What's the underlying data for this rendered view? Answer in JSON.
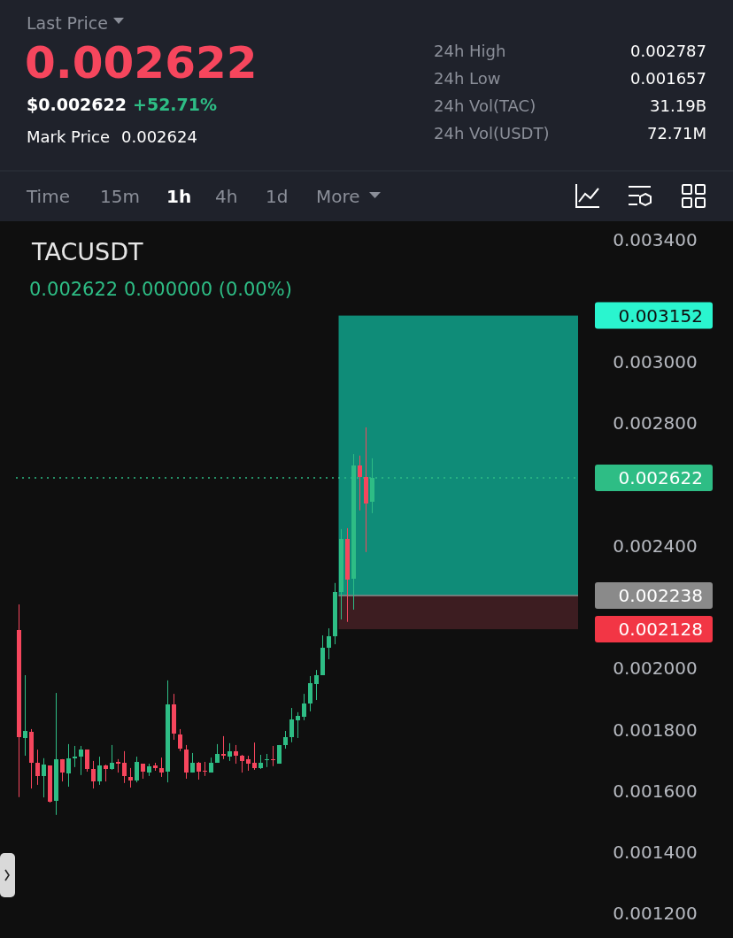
{
  "chart_data": {
    "type": "candlestick",
    "title": "TACUSDT",
    "subtitle": "0.002622  0.000000 (0.00%)",
    "annotations": [
      "Last Price",
      "0.002622",
      "$0.002622",
      "+52.71%",
      "Mark Price",
      "0.002624",
      "24h High",
      "0.002787",
      "24h Low",
      "0.001657",
      "24h Vol(TAC)",
      "31.19B",
      "24h Vol(USDT)",
      "72.71M",
      "Time",
      "15m",
      "1h",
      "4h",
      "1d",
      "More"
    ],
    "categories": [
      null,
      null,
      null,
      null,
      null,
      null,
      null,
      null,
      null,
      null,
      null,
      null,
      null,
      null,
      null,
      null,
      null,
      null,
      null,
      null,
      null,
      null,
      null,
      null,
      null,
      null,
      null,
      null,
      null,
      null,
      null,
      null,
      null,
      null,
      null,
      null,
      null,
      null,
      null,
      null,
      null,
      null,
      null,
      null,
      null,
      null,
      null,
      null,
      null,
      null,
      null,
      null,
      null,
      null,
      null,
      null,
      null,
      null,
      null,
      null,
      null,
      null,
      null,
      null,
      null,
      null,
      null,
      null,
      null,
      null,
      null,
      null,
      null,
      null,
      null,
      null,
      null,
      null,
      null,
      null,
      null,
      null,
      null,
      null,
      null,
      null,
      null,
      null,
      null,
      null,
      null
    ],
    "ohlc": [
      [
        0.002126,
        0.002209,
        0.00158,
        0.001776
      ],
      [
        0.001773,
        0.001978,
        0.001715,
        0.001796
      ],
      [
        0.001793,
        0.001802,
        0.001608,
        0.001692
      ],
      [
        0.001692,
        0.001735,
        0.00162,
        0.001649
      ],
      [
        0.001649,
        0.001707,
        0.001579,
        0.001686
      ],
      [
        0.001683,
        0.001683,
        0.001562,
        0.001565
      ],
      [
        0.001568,
        0.00192,
        0.001522,
        0.001704
      ],
      [
        0.001704,
        0.001704,
        0.001631,
        0.00166
      ],
      [
        0.001657,
        0.001753,
        0.001614,
        0.001707
      ],
      [
        0.001707,
        0.001747,
        0.001678,
        0.001712
      ],
      [
        0.001712,
        0.001747,
        0.001652,
        0.001735
      ],
      [
        0.001735,
        0.001735,
        0.001663,
        0.001672
      ],
      [
        0.001672,
        0.001698,
        0.001608,
        0.001631
      ],
      [
        0.001631,
        0.001712,
        0.00162,
        0.001683
      ],
      [
        0.001683,
        0.001686,
        0.001631,
        0.001672
      ],
      [
        0.001672,
        0.00175,
        0.001669,
        0.001692
      ],
      [
        0.001695,
        0.001704,
        0.00166,
        0.001689
      ],
      [
        0.001692,
        0.00173,
        0.001626,
        0.001649
      ],
      [
        0.001646,
        0.001675,
        0.001611,
        0.001634
      ],
      [
        0.001634,
        0.001712,
        0.001628,
        0.001695
      ],
      [
        0.001689,
        0.001689,
        0.00164,
        0.001663
      ],
      [
        0.00166,
        0.001689,
        0.001649,
        0.001681
      ],
      [
        0.001683,
        0.001692,
        0.001666,
        0.001675
      ],
      [
        0.001675,
        0.001709,
        0.001646,
        0.00166
      ],
      [
        0.001663,
        0.001961,
        0.001628,
        0.001883
      ],
      [
        0.001883,
        0.001917,
        0.001767,
        0.001788
      ],
      [
        0.001785,
        0.001802,
        0.00173,
        0.001738
      ],
      [
        0.001735,
        0.00175,
        0.00164,
        0.00166
      ],
      [
        0.00166,
        0.001724,
        0.00166,
        0.001692
      ],
      [
        0.001692,
        0.001695,
        0.001637,
        0.001663
      ],
      [
        0.001666,
        0.001695,
        0.001649,
        0.001663
      ],
      [
        0.00166,
        0.001709,
        0.00166,
        0.001692
      ],
      [
        0.001692,
        0.001753,
        0.001692,
        0.00172
      ],
      [
        0.00172,
        0.001779,
        0.001704,
        0.001715
      ],
      [
        0.001712,
        0.001756,
        0.001698,
        0.00173
      ],
      [
        0.00173,
        0.00175,
        0.001689,
        0.001715
      ],
      [
        0.001715,
        0.001718,
        0.00166,
        0.001698
      ],
      [
        0.001704,
        0.001715,
        0.001666,
        0.001689
      ],
      [
        0.001692,
        0.001758,
        0.001669,
        0.001675
      ],
      [
        0.001675,
        0.001718,
        0.001672,
        0.001692
      ],
      [
        0.001701,
        0.001721,
        0.001678,
        0.001704
      ],
      [
        0.001704,
        0.001747,
        0.001681,
        0.001701
      ],
      [
        0.001689,
        0.00175,
        0.001689,
        0.00175
      ],
      [
        0.00175,
        0.001796,
        0.001738,
        0.001776
      ],
      [
        0.001776,
        0.001871,
        0.001759,
        0.001834
      ],
      [
        0.001831,
        0.001857,
        0.001773,
        0.001845
      ],
      [
        0.001842,
        0.001917,
        0.001831,
        0.001886
      ],
      [
        0.001886,
        0.001975,
        0.00186,
        0.001952
      ],
      [
        0.001949,
        0.001995,
        0.001897,
        0.001978
      ],
      [
        0.001978,
        0.002108,
        0.001978,
        0.002068
      ],
      [
        0.002068,
        0.002131,
        0.00203,
        0.002105
      ],
      [
        0.002105,
        0.002279,
        0.002079,
        0.00225
      ],
      [
        0.00225,
        0.002455,
        0.00216,
        0.002423
      ],
      [
        0.002423,
        0.002458,
        0.002152,
        0.00229
      ],
      [
        0.002293,
        0.0027,
        0.002192,
        0.002663
      ],
      [
        0.002663,
        0.002695,
        0.002516,
        0.002625
      ],
      [
        0.002625,
        0.002787,
        0.00238,
        0.002539
      ],
      [
        0.002545,
        0.002686,
        0.002507,
        0.002622
      ],
      null,
      null,
      null,
      null,
      null,
      null,
      null,
      null,
      null,
      null,
      null,
      null,
      null,
      null,
      null,
      null,
      null,
      null,
      null,
      null,
      null,
      null,
      null,
      null,
      null,
      null,
      null,
      null,
      null,
      null,
      null,
      null,
      null
    ],
    "colors": [
      "#f6465d",
      "#2ebd85",
      "#f6465d",
      "#f6465d",
      "#2ebd85",
      "#f6465d",
      "#2ebd85",
      "#f6465d",
      "#2ebd85",
      "#2ebd85",
      "#2ebd85",
      "#f6465d",
      "#f6465d",
      "#2ebd85",
      "#f6465d",
      "#2ebd85",
      "#f6465d",
      "#f6465d",
      "#f6465d",
      "#2ebd85",
      "#f6465d",
      "#2ebd85",
      "#f6465d",
      "#f6465d",
      "#2ebd85",
      "#f6465d",
      "#f6465d",
      "#f6465d",
      "#2ebd85",
      "#f6465d",
      "#f6465d",
      "#2ebd85",
      "#2ebd85",
      "#f6465d",
      "#2ebd85",
      "#f6465d",
      "#f6465d",
      "#f6465d",
      "#f6465d",
      "#2ebd85",
      "#2ebd85",
      "#f6465d",
      "#2ebd85",
      "#2ebd85",
      "#2ebd85",
      "#2ebd85",
      "#2ebd85",
      "#2ebd85",
      "#2ebd85",
      "#2ebd85",
      "#2ebd85",
      "#2ebd85",
      "#2ebd85",
      "#f6465d",
      "#2ebd85",
      "#f6465d",
      "#f6465d",
      "#2ebd85",
      null,
      null,
      null,
      null,
      null,
      null,
      null,
      null,
      null,
      null,
      null,
      null,
      null,
      null,
      null,
      null,
      null,
      null,
      null,
      null,
      null,
      null,
      null,
      null,
      null,
      null,
      null,
      null,
      null,
      null,
      null,
      null,
      null
    ],
    "ylim": [
      0.00112,
      0.00346
    ],
    "yticks": [
      {
        "value": 0.0034,
        "label": "0.003400"
      },
      {
        "value": 0.003,
        "label": "0.003000"
      },
      {
        "value": 0.0028,
        "label": "0.002800"
      },
      {
        "value": 0.0024,
        "label": "0.002400"
      },
      {
        "value": 0.002,
        "label": "0.002000"
      },
      {
        "value": 0.0018,
        "label": "0.001800"
      },
      {
        "value": 0.0016,
        "label": "0.001600"
      },
      {
        "value": 0.0014,
        "label": "0.001400"
      },
      {
        "value": 0.0012,
        "label": "0.001200"
      }
    ],
    "tick_labels": "y",
    "grid": false,
    "bands": [
      {
        "axis": "y",
        "from": 0.002238,
        "to": 0.003152,
        "label": "0.003152",
        "color": "#0f8c78"
      },
      {
        "axis": "y",
        "from": 0.002128,
        "to": 0.002238,
        "label": "0.002128",
        "color": "#3d1d21"
      }
    ],
    "ref_lines": [
      {
        "axis": "y",
        "value": 0.002622,
        "label": "0.002622",
        "color": "#2ebd85",
        "line_style": "dotted"
      },
      {
        "axis": "y",
        "value": 0.002238,
        "label": "0.002238",
        "color": "#8a8a8a",
        "line_style": "solid"
      }
    ]
  }
}
